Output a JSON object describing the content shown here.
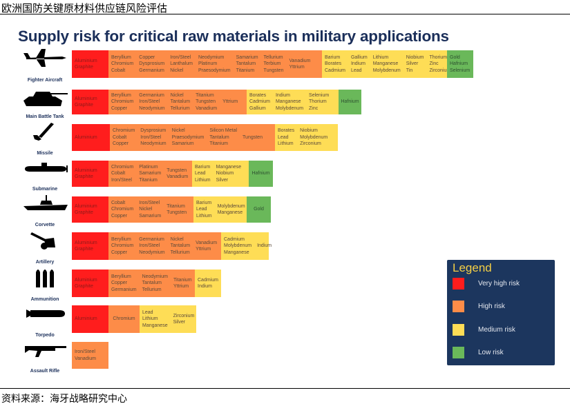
{
  "header": {
    "title": "欧洲国防关键原材料供应链风险评估"
  },
  "chart_title": "Supply risk for critical raw materials in military applications",
  "colors": {
    "very_high": "#ff1d1d",
    "high": "#fd8c48",
    "medium": "#fedd56",
    "low": "#6ab85a",
    "legend_bg": "#1c365e",
    "title": "#1b2f5a"
  },
  "rows": [
    {
      "label": "Fighter Aircraft",
      "icon": "fighter-aircraft-icon",
      "tiers": [
        {
          "risk": "very_high",
          "columns": [
            [
              "Aluminium",
              "Graphite"
            ]
          ]
        },
        {
          "risk": "high",
          "columns": [
            [
              "Beryllium",
              "Chromium",
              "Cobalt"
            ],
            [
              "Copper",
              "Dysprosium",
              "Germanium"
            ],
            [
              "Iron/Steel",
              "Lanthalum",
              "Nickel"
            ],
            [
              "Neodymium",
              "Platinum",
              "Praesodymium"
            ],
            [
              "Samarium",
              "Tantalum",
              "Titanium"
            ],
            [
              "Tellurium",
              "Terbium",
              "Tungsten"
            ],
            [
              "Vanadium",
              "Yttrium"
            ]
          ]
        },
        {
          "risk": "medium",
          "columns": [
            [
              "Barium",
              "Borates",
              "Cadmium"
            ],
            [
              "Gallium",
              "Indium",
              "Lead"
            ],
            [
              "Lithium",
              "Manganese",
              "Molybdenum"
            ],
            [
              "Niobium",
              "Silver",
              "Tin"
            ],
            [
              "Thorium",
              "Zinc",
              "Zirconium"
            ]
          ]
        },
        {
          "risk": "low",
          "columns": [
            [
              "Gold",
              "Hafnium",
              "Selenium"
            ]
          ]
        }
      ]
    },
    {
      "label": "Main Battle Tank",
      "icon": "tank-icon",
      "tiers": [
        {
          "risk": "very_high",
          "columns": [
            [
              "Aluminium",
              "Graphite"
            ]
          ]
        },
        {
          "risk": "high",
          "columns": [
            [
              "Beryllium",
              "Chromium",
              "Copper"
            ],
            [
              "Germanium",
              "Iron/Steel",
              "Neodymium"
            ],
            [
              "Nickel",
              "Tantalum",
              "Tellurium"
            ],
            [
              "Titanium",
              "Tungsten",
              "Vanadium"
            ],
            [
              "Yttrium"
            ]
          ]
        },
        {
          "risk": "medium",
          "columns": [
            [
              "Borates",
              "Cadmium",
              "Gallium"
            ],
            [
              "Indium",
              "Manganese",
              "Molybdenum"
            ],
            [
              "Selenium",
              "Thorium",
              "Zinc"
            ]
          ]
        },
        {
          "risk": "low",
          "columns": [
            [
              "Hafnium"
            ]
          ]
        }
      ]
    },
    {
      "label": "Missile",
      "icon": "missile-icon",
      "tiers": [
        {
          "risk": "very_high",
          "columns": [
            [
              "Aluminium"
            ]
          ]
        },
        {
          "risk": "high",
          "columns": [
            [
              "Chromium",
              "Cobalt",
              "Copper"
            ],
            [
              "Dysprosium",
              "Iron/Steel",
              "Neodymium"
            ],
            [
              "Nickel",
              "Praesodymium",
              "Samarium"
            ],
            [
              "Silicon Metal",
              "Tantalum",
              "Titanium"
            ],
            [
              "Tungsten"
            ]
          ]
        },
        {
          "risk": "medium",
          "columns": [
            [
              "Borates",
              "Lead",
              "Lithium"
            ],
            [
              "Niobium",
              "Molybdenum",
              "Zirconium"
            ]
          ]
        }
      ]
    },
    {
      "label": "Submarine",
      "icon": "submarine-icon",
      "tiers": [
        {
          "risk": "very_high",
          "columns": [
            [
              "Aluminium",
              "Graphite"
            ]
          ]
        },
        {
          "risk": "high",
          "columns": [
            [
              "Chromium",
              "Cobalt",
              "Iron/Steel"
            ],
            [
              "Platinum",
              "Samarium",
              "Titanium"
            ],
            [
              "Tungsten",
              "Vanadium"
            ]
          ]
        },
        {
          "risk": "medium",
          "columns": [
            [
              "Barium",
              "Lead",
              "Lithium"
            ],
            [
              "Manganese",
              "Niobium",
              "Silver"
            ]
          ]
        },
        {
          "risk": "low",
          "columns": [
            [
              "Hafnium"
            ]
          ]
        }
      ]
    },
    {
      "label": "Corvette",
      "icon": "corvette-icon",
      "tiers": [
        {
          "risk": "very_high",
          "columns": [
            [
              "Aluminium",
              "Graphite"
            ]
          ]
        },
        {
          "risk": "high",
          "columns": [
            [
              "Cobalt",
              "Chromium",
              "Copper"
            ],
            [
              "Iron/Steel",
              "Nickel",
              "Samarium"
            ],
            [
              "Titanium",
              "Tungsten"
            ]
          ]
        },
        {
          "risk": "medium",
          "columns": [
            [
              "Barium",
              "Lead",
              "Lithium"
            ],
            [
              "Molybdenum",
              "Manganese"
            ]
          ]
        },
        {
          "risk": "low",
          "columns": [
            [
              "Gold"
            ]
          ]
        }
      ]
    },
    {
      "label": "Artillery",
      "icon": "artillery-icon",
      "tiers": [
        {
          "risk": "very_high",
          "columns": [
            [
              "Aluminium",
              "Graphite"
            ]
          ]
        },
        {
          "risk": "high",
          "columns": [
            [
              "Beryllium",
              "Chromium",
              "Copper"
            ],
            [
              "Germanium",
              "Iron/Steel",
              "Neodymium"
            ],
            [
              "Nickel",
              "Tantalum",
              "Tellurium"
            ],
            [
              "Vanadium",
              "Yttrium"
            ]
          ]
        },
        {
          "risk": "medium",
          "columns": [
            [
              "Cadmium",
              "Molybdenum",
              "Manganese"
            ],
            [
              "Indium"
            ]
          ]
        }
      ]
    },
    {
      "label": "Ammunition",
      "icon": "ammunition-icon",
      "tiers": [
        {
          "risk": "very_high",
          "columns": [
            [
              "Aluminium",
              "Graphite"
            ]
          ]
        },
        {
          "risk": "high",
          "columns": [
            [
              "Beryllium",
              "Copper",
              "Germanium"
            ],
            [
              "Neodymium",
              "Tantalum",
              "Tellurium"
            ],
            [
              "Titanium",
              "Yttrium"
            ]
          ]
        },
        {
          "risk": "medium",
          "columns": [
            [
              "Cadmium",
              "Indium"
            ]
          ]
        }
      ]
    },
    {
      "label": "Torpedo",
      "icon": "torpedo-icon",
      "tiers": [
        {
          "risk": "very_high",
          "columns": [
            [
              "Aluminium"
            ]
          ]
        },
        {
          "risk": "high",
          "columns": [
            [
              "Chromium"
            ]
          ]
        },
        {
          "risk": "medium",
          "columns": [
            [
              "Lead",
              "Lithium",
              "Manganese"
            ],
            [
              "Zirconium",
              "Silver"
            ]
          ]
        }
      ]
    },
    {
      "label": "Assault Rifle",
      "icon": "assault-rifle-icon",
      "tiers": [
        {
          "risk": "high",
          "columns": [
            [
              "Iron/Steel",
              "Vanadium"
            ]
          ]
        }
      ]
    }
  ],
  "legend": {
    "title": "Legend",
    "items": [
      {
        "risk": "very_high",
        "label": "Very high risk"
      },
      {
        "risk": "high",
        "label": "High risk"
      },
      {
        "risk": "medium",
        "label": "Medium risk"
      },
      {
        "risk": "low",
        "label": "Low risk"
      }
    ]
  },
  "footer": {
    "source": "资料来源：海牙战略研究中心"
  }
}
